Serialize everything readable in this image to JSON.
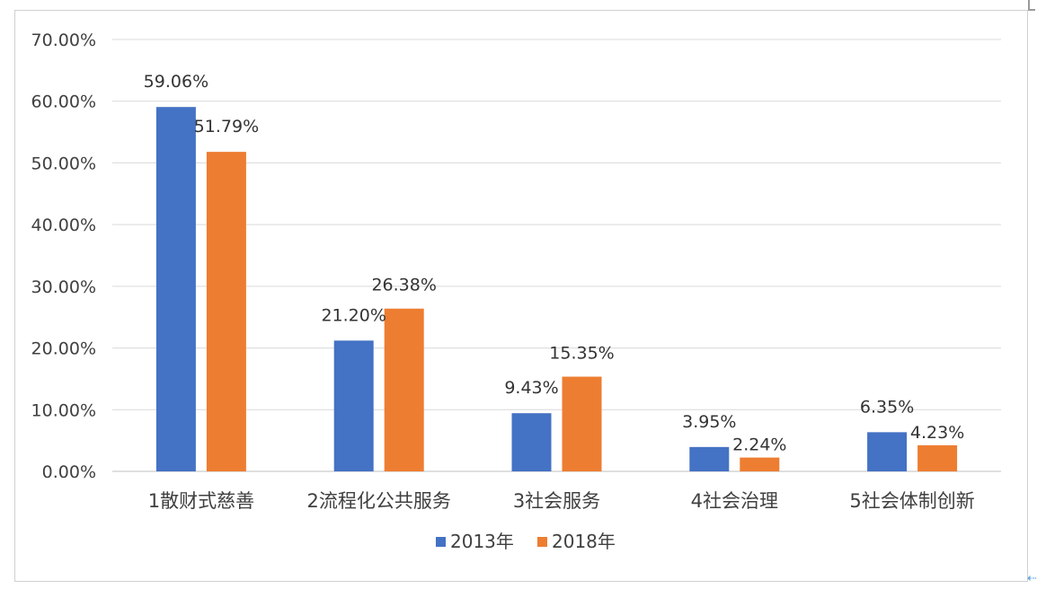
{
  "chart_data": {
    "type": "bar",
    "categories": [
      "1散财式慈善",
      "2流程化公共服务",
      "3社会服务",
      "4社会治理",
      "5社会体制创新"
    ],
    "series": [
      {
        "name": "2013年",
        "values": [
          59.06,
          21.2,
          9.43,
          3.95,
          6.35
        ],
        "labels": [
          "59.06%",
          "21.20%",
          "9.43%",
          "3.95%",
          "6.35%"
        ],
        "color": "#4472C4"
      },
      {
        "name": "2018年",
        "values": [
          51.79,
          26.38,
          15.35,
          2.24,
          4.23
        ],
        "labels": [
          "51.79%",
          "26.38%",
          "15.35%",
          "2.24%",
          "4.23%"
        ],
        "color": "#ED7D31"
      }
    ],
    "y_ticks": [
      "0.00%",
      "10.00%",
      "20.00%",
      "30.00%",
      "40.00%",
      "50.00%",
      "60.00%",
      "70.00%"
    ],
    "ylim": [
      0,
      70
    ],
    "grid": true,
    "legend": "bottom",
    "grid_color": "#d9d9d9"
  }
}
